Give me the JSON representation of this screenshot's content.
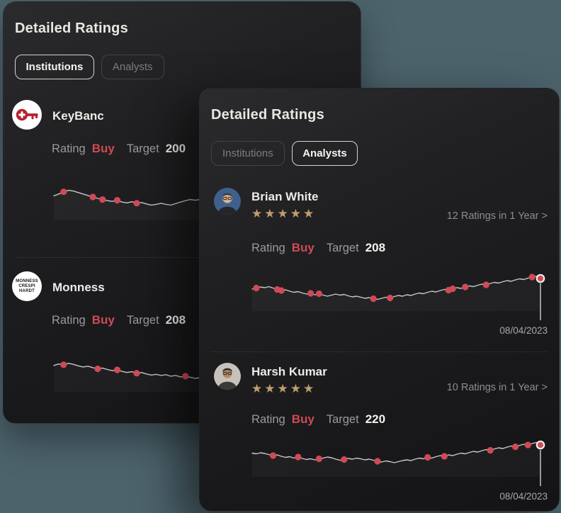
{
  "page": {
    "background": "#4c636c"
  },
  "colors": {
    "accent_red": "#d04a55",
    "star_gold": "#bf9e6c",
    "chart_line": "#c9c7ca",
    "chart_drop_line": "#cfcdd0",
    "end_marker_ring": "#efeeec",
    "text_primary": "#edebe8",
    "text_secondary": "#9b999d"
  },
  "back_card": {
    "title": "Detailed Ratings",
    "tabs": [
      {
        "label": "Institutions",
        "selected": true
      },
      {
        "label": "Analysts",
        "selected": false
      }
    ],
    "rows": [
      {
        "name": "KeyBanc",
        "rating_label": "Rating",
        "rating_value": "Buy",
        "target_label": "Target",
        "target_value": "200",
        "sparkline": {
          "type": "line",
          "values": [
            55,
            60,
            66,
            70,
            68,
            64,
            60,
            56,
            52,
            48,
            45,
            42,
            40,
            43,
            38,
            36,
            39,
            35,
            37,
            33,
            30,
            32,
            35,
            32,
            30,
            34,
            38,
            42,
            45,
            43,
            45,
            41,
            38,
            40,
            36,
            33,
            35,
            31,
            28,
            30,
            27,
            25,
            27,
            30,
            28,
            32,
            35,
            33,
            37,
            40,
            38,
            42,
            45,
            43,
            47,
            50,
            48,
            52,
            55,
            53
          ],
          "marker_indices": [
            2,
            8,
            10,
            13,
            17,
            40,
            55,
            58
          ],
          "end_marker": false
        }
      },
      {
        "name": "Monness",
        "avatar_lines": [
          "MONNESS",
          "CRESPI",
          "HARDT"
        ],
        "rating_label": "Rating",
        "rating_value": "Buy",
        "target_label": "Target",
        "target_value": "208",
        "sparkline": {
          "type": "line",
          "values": [
            60,
            64,
            62,
            66,
            63,
            59,
            56,
            58,
            54,
            51,
            53,
            49,
            46,
            48,
            44,
            41,
            43,
            39,
            41,
            37,
            34,
            36,
            33,
            35,
            31,
            33,
            29,
            31,
            28,
            25,
            27,
            24,
            26,
            23,
            25,
            27,
            25,
            28,
            26,
            29,
            31,
            29,
            32,
            30,
            33,
            35,
            33,
            36,
            34,
            37,
            39,
            37,
            40,
            38,
            41,
            43,
            41,
            44,
            42,
            45
          ],
          "marker_indices": [
            2,
            9,
            13,
            17,
            27,
            49,
            58
          ],
          "end_marker": false
        }
      }
    ]
  },
  "front_card": {
    "title": "Detailed Ratings",
    "tabs": [
      {
        "label": "Institutions",
        "selected": false
      },
      {
        "label": "Analysts",
        "selected": true
      }
    ],
    "rows": [
      {
        "name": "Brian White",
        "stars": 5,
        "ratings_link": "12 Ratings in 1 Year >",
        "rating_label": "Rating",
        "rating_value": "Buy",
        "target_label": "Target",
        "target_value": "208",
        "date": "08/04/2023",
        "sparkline": {
          "type": "line",
          "values": [
            50,
            53,
            56,
            54,
            57,
            53,
            49,
            46,
            48,
            44,
            41,
            43,
            39,
            36,
            38,
            34,
            37,
            33,
            30,
            33,
            36,
            33,
            35,
            31,
            28,
            30,
            27,
            24,
            26,
            23,
            21,
            24,
            27,
            25,
            29,
            32,
            30,
            34,
            32,
            36,
            39,
            37,
            41,
            44,
            42,
            46,
            49,
            47,
            51,
            54,
            52,
            56,
            59,
            57,
            61,
            64,
            62,
            66,
            69,
            67,
            71,
            74,
            72,
            76,
            79,
            77,
            81,
            84,
            86,
            80
          ],
          "marker_indices": [
            1,
            6,
            7,
            14,
            16,
            29,
            33,
            47,
            48,
            51,
            56,
            67
          ],
          "end_marker": true
        }
      },
      {
        "name": "Harsh Kumar",
        "stars": 5,
        "ratings_link": "10 Ratings in 1 Year >",
        "rating_label": "Rating",
        "rating_value": "Buy",
        "target_label": "Target",
        "target_value": "220",
        "date": "08/04/2023",
        "sparkline": {
          "type": "line",
          "values": [
            55,
            53,
            56,
            54,
            51,
            48,
            50,
            46,
            43,
            45,
            41,
            44,
            40,
            37,
            39,
            36,
            39,
            41,
            44,
            42,
            38,
            35,
            37,
            40,
            38,
            41,
            39,
            36,
            38,
            35,
            32,
            30,
            33,
            31,
            28,
            31,
            34,
            36,
            34,
            38,
            41,
            39,
            43,
            41,
            45,
            48,
            46,
            50,
            48,
            52,
            55,
            53,
            57,
            60,
            58,
            62,
            65,
            63,
            67,
            70,
            68,
            72,
            75,
            73,
            77,
            80,
            78,
            82,
            85,
            78
          ],
          "marker_indices": [
            5,
            11,
            16,
            22,
            30,
            42,
            46,
            57,
            63,
            66
          ],
          "end_marker": true
        }
      }
    ]
  }
}
